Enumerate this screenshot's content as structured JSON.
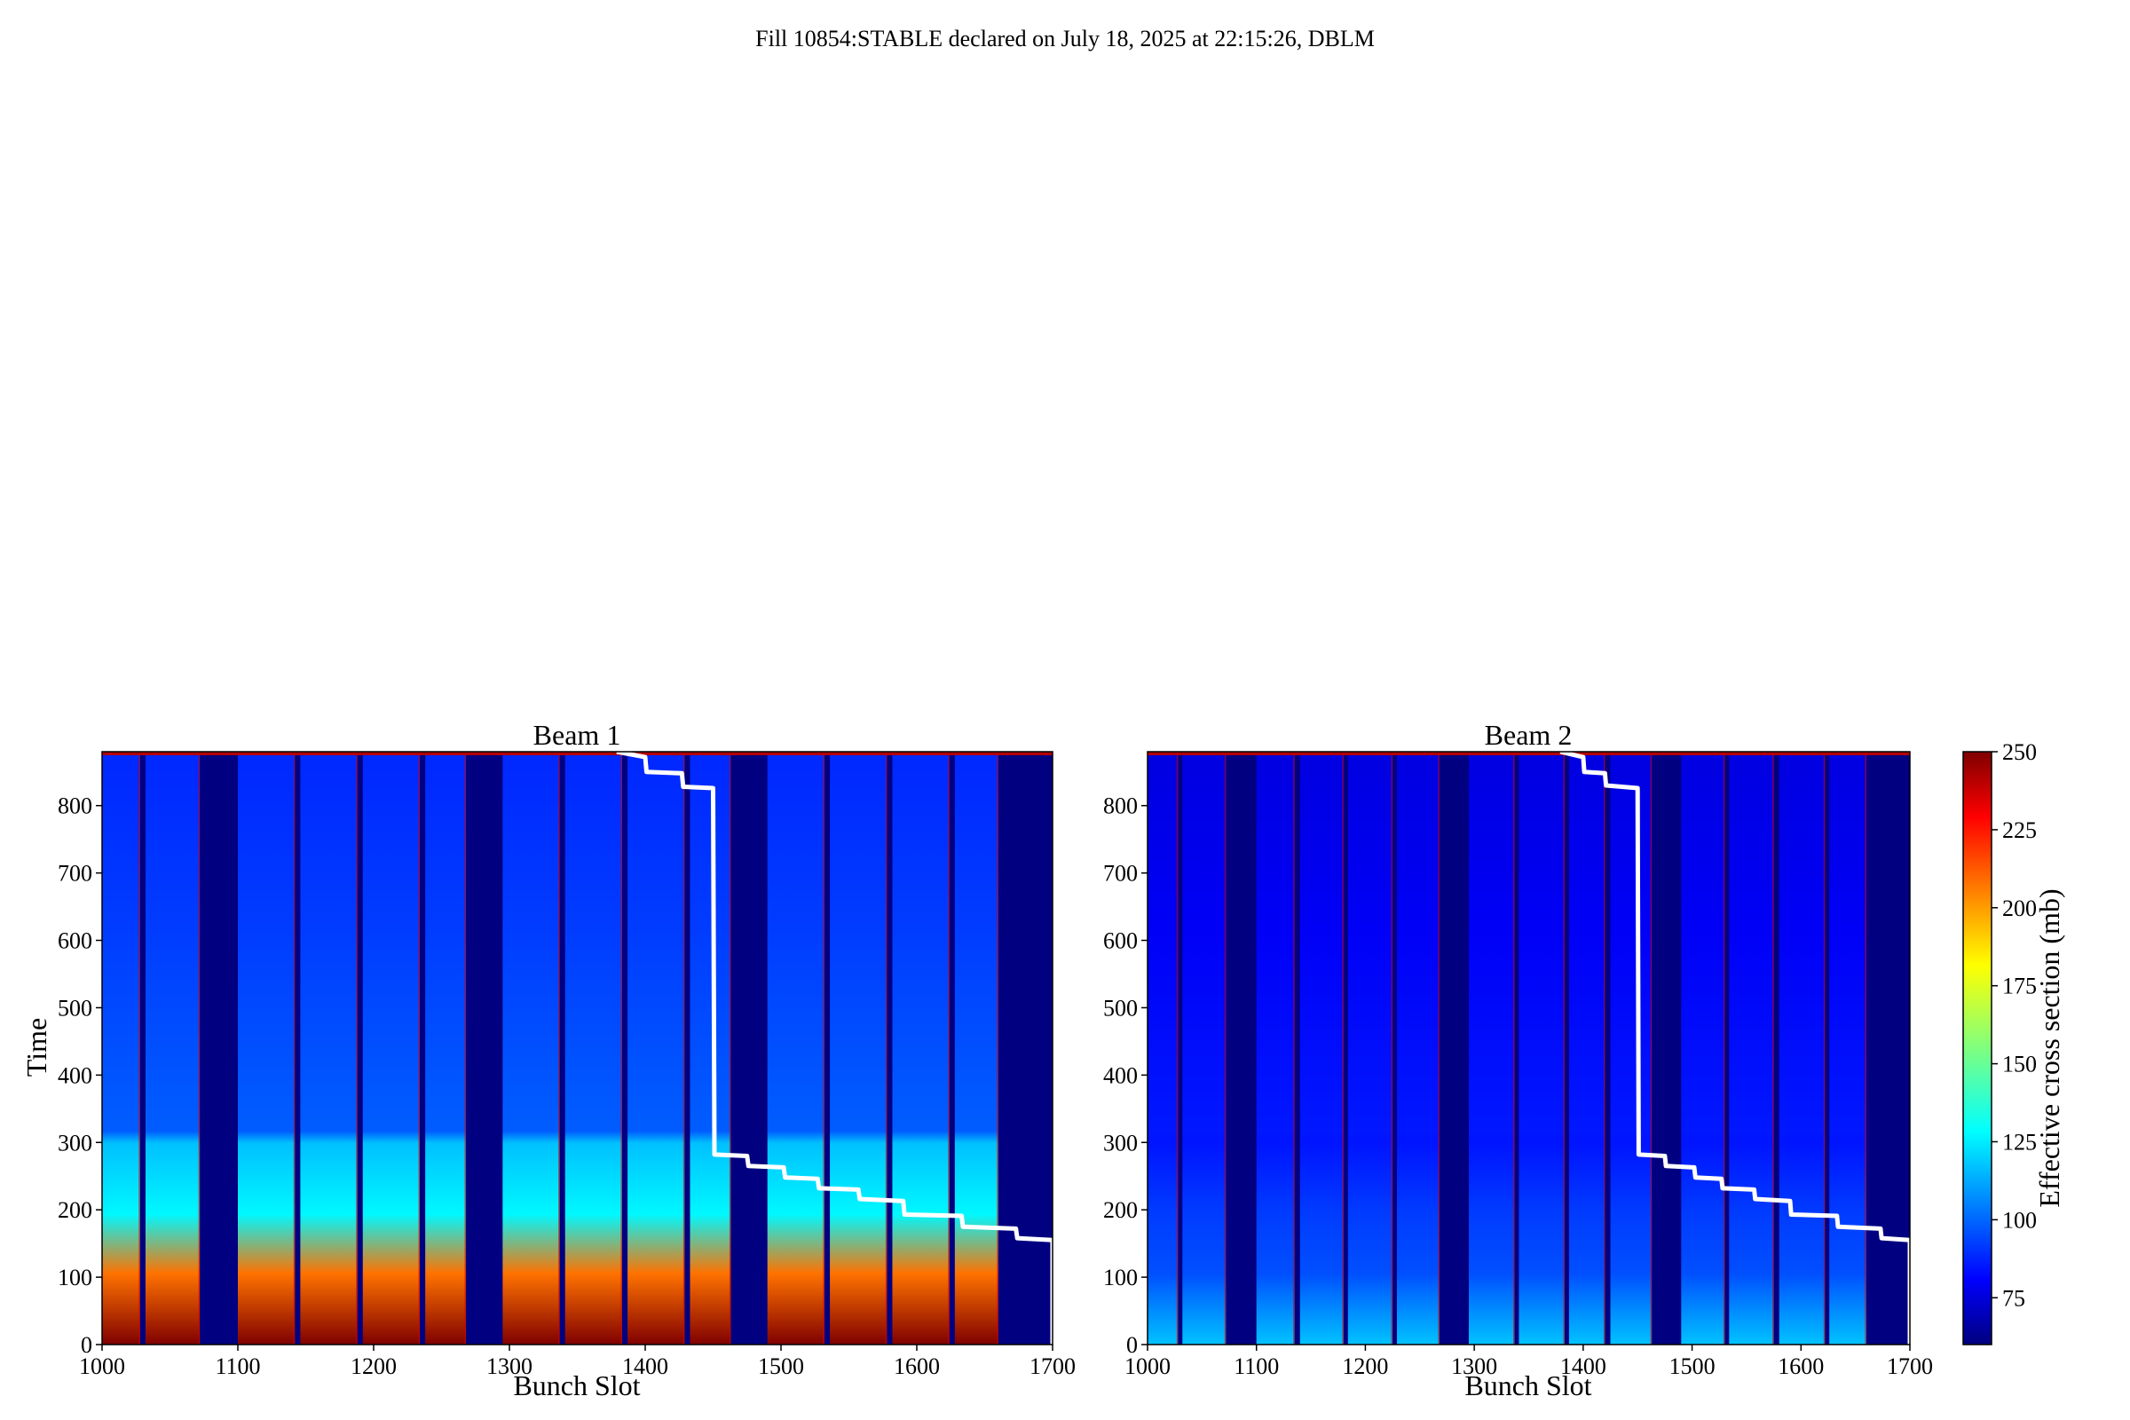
{
  "figure": {
    "suptitle": "Fill 10854:STABLE declared on July 18, 2025 at 22:15:26, DBLM"
  },
  "colorbar": {
    "label": "Effective cross section (mb)",
    "colormap": "jet",
    "vmin": 60,
    "vmax": 250,
    "ticks": [
      75,
      100,
      125,
      150,
      175,
      200,
      225,
      250
    ],
    "tick_labels": [
      "75",
      "100",
      "125",
      "150",
      "175",
      "200",
      "225",
      "250"
    ]
  },
  "chart_data": [
    {
      "type": "heatmap",
      "title": "Beam 1",
      "xlabel": "Bunch Slot",
      "ylabel": "Time",
      "xlim": [
        1000,
        1700
      ],
      "ylim": [
        0,
        880
      ],
      "xticks": [
        1000,
        1100,
        1200,
        1300,
        1400,
        1500,
        1600,
        1700
      ],
      "yticks": [
        0,
        100,
        200,
        300,
        400,
        500,
        600,
        700,
        800
      ],
      "trains": [
        [
          1000,
          1028
        ],
        [
          1032,
          1072
        ],
        [
          1100,
          1142
        ],
        [
          1146,
          1188
        ],
        [
          1192,
          1234
        ],
        [
          1238,
          1268
        ],
        [
          1295,
          1337
        ],
        [
          1341,
          1383
        ],
        [
          1387,
          1429
        ],
        [
          1433,
          1463
        ],
        [
          1490,
          1532
        ],
        [
          1536,
          1578
        ],
        [
          1582,
          1624
        ],
        [
          1628,
          1660
        ]
      ],
      "intensity": {
        "base": 95,
        "start_peak": 250,
        "mid": 130
      },
      "step_line": {
        "color": "#ffffff",
        "points": [
          [
            1379,
            880
          ],
          [
            1400,
            872
          ],
          [
            1401,
            850
          ],
          [
            1427,
            848
          ],
          [
            1428,
            828
          ],
          [
            1450,
            826
          ],
          [
            1451,
            282
          ],
          [
            1475,
            280
          ],
          [
            1476,
            265
          ],
          [
            1502,
            263
          ],
          [
            1503,
            248
          ],
          [
            1527,
            246
          ],
          [
            1528,
            232
          ],
          [
            1557,
            230
          ],
          [
            1558,
            216
          ],
          [
            1590,
            213
          ],
          [
            1591,
            193
          ],
          [
            1633,
            191
          ],
          [
            1634,
            175
          ],
          [
            1673,
            172
          ],
          [
            1674,
            158
          ],
          [
            1700,
            155
          ],
          [
            1700,
            0
          ]
        ]
      }
    },
    {
      "type": "heatmap",
      "title": "Beam 2",
      "xlabel": "Bunch Slot",
      "ylabel": "",
      "xlim": [
        1000,
        1700
      ],
      "ylim": [
        0,
        880
      ],
      "xticks": [
        1000,
        1100,
        1200,
        1300,
        1400,
        1500,
        1600,
        1700
      ],
      "yticks": [
        0,
        100,
        200,
        300,
        400,
        500,
        600,
        700,
        800
      ],
      "trains": [
        [
          1000,
          1028
        ],
        [
          1032,
          1072
        ],
        [
          1100,
          1135
        ],
        [
          1140,
          1180
        ],
        [
          1184,
          1225
        ],
        [
          1229,
          1268
        ],
        [
          1295,
          1337
        ],
        [
          1341,
          1383
        ],
        [
          1387,
          1420
        ],
        [
          1425,
          1463
        ],
        [
          1490,
          1530
        ],
        [
          1534,
          1575
        ],
        [
          1580,
          1622
        ],
        [
          1626,
          1660
        ]
      ],
      "intensity": {
        "base": 82,
        "start_peak": 120,
        "mid": 95
      },
      "step_line": {
        "color": "#ffffff",
        "points": [
          [
            1379,
            880
          ],
          [
            1400,
            872
          ],
          [
            1401,
            850
          ],
          [
            1420,
            848
          ],
          [
            1421,
            830
          ],
          [
            1450,
            826
          ],
          [
            1451,
            282
          ],
          [
            1475,
            280
          ],
          [
            1476,
            265
          ],
          [
            1502,
            263
          ],
          [
            1503,
            248
          ],
          [
            1527,
            246
          ],
          [
            1528,
            232
          ],
          [
            1557,
            230
          ],
          [
            1558,
            216
          ],
          [
            1590,
            213
          ],
          [
            1591,
            193
          ],
          [
            1633,
            191
          ],
          [
            1634,
            175
          ],
          [
            1673,
            172
          ],
          [
            1674,
            158
          ],
          [
            1700,
            155
          ],
          [
            1700,
            0
          ]
        ]
      }
    }
  ]
}
